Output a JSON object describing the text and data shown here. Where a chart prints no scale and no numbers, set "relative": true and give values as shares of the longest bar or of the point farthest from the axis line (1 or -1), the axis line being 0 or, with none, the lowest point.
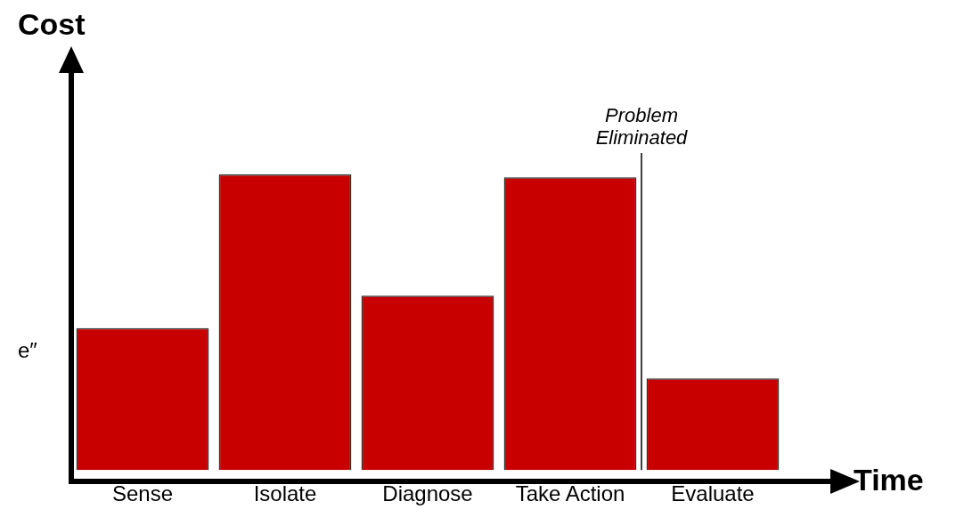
{
  "chart_data": {
    "type": "bar",
    "relative": true,
    "ylabel": "Cost",
    "xlabel": "Time",
    "categories": [
      "Sense",
      "Isolate",
      "Diagnose",
      "Take Action",
      "Evaluate"
    ],
    "values": [
      0.48,
      1,
      0.59,
      0.99,
      0.31
    ],
    "color": "#c80000",
    "annotations": [
      "e″",
      "Problem Eliminated"
    ]
  }
}
